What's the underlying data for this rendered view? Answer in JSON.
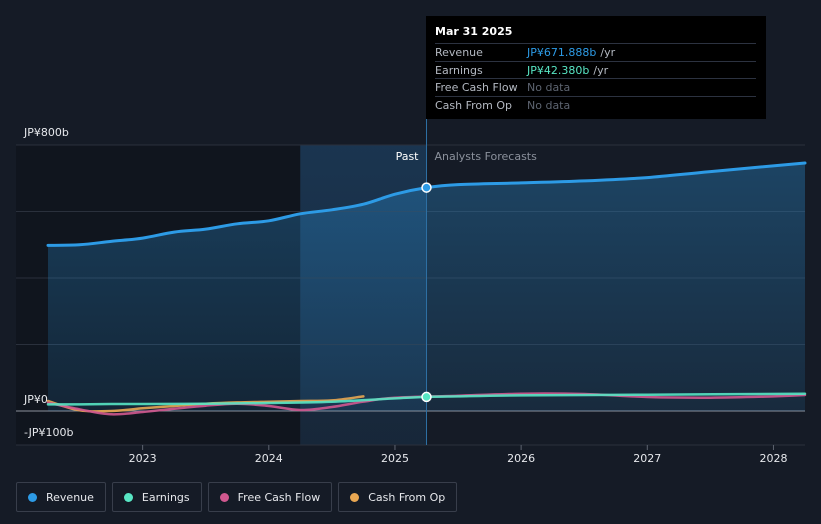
{
  "chart_data": {
    "type": "line",
    "y_labels": {
      "top": "JP¥800b",
      "zero": "JP¥0",
      "bottom": "-JP¥100b"
    },
    "ylim": [
      -100,
      800
    ],
    "xlim": [
      2022.25,
      2028.25
    ],
    "x_ticks": [
      "2023",
      "2024",
      "2025",
      "2026",
      "2027",
      "2028"
    ],
    "x_tick_values": [
      2023,
      2024,
      2025,
      2026,
      2027,
      2028
    ],
    "past_label": "Past",
    "forecast_label": "Analysts Forecasts",
    "past_start": 2024.25,
    "divider": 2025.25,
    "series": [
      {
        "name": "Revenue",
        "color": "#2d9be6",
        "points": [
          [
            2022.25,
            498
          ],
          [
            2022.5,
            500
          ],
          [
            2022.75,
            510
          ],
          [
            2023.0,
            520
          ],
          [
            2023.25,
            538
          ],
          [
            2023.5,
            547
          ],
          [
            2023.75,
            563
          ],
          [
            2024.0,
            572
          ],
          [
            2024.25,
            593
          ],
          [
            2024.5,
            605
          ],
          [
            2024.75,
            622
          ],
          [
            2025.0,
            652
          ],
          [
            2025.25,
            672
          ],
          [
            2025.5,
            681
          ],
          [
            2026.0,
            686
          ],
          [
            2026.5,
            692
          ],
          [
            2027.0,
            702
          ],
          [
            2027.5,
            720
          ],
          [
            2028.25,
            746
          ]
        ]
      },
      {
        "name": "Earnings",
        "color": "#58e6c4",
        "points": [
          [
            2022.25,
            20
          ],
          [
            2022.5,
            20
          ],
          [
            2022.75,
            21
          ],
          [
            2023.0,
            21
          ],
          [
            2023.5,
            22
          ],
          [
            2024.0,
            24
          ],
          [
            2024.5,
            28
          ],
          [
            2025.0,
            38
          ],
          [
            2025.25,
            42.4
          ],
          [
            2025.5,
            44
          ],
          [
            2026.0,
            47
          ],
          [
            2027.0,
            49
          ],
          [
            2028.25,
            52
          ]
        ]
      },
      {
        "name": "Free Cash Flow",
        "color": "#d0588f",
        "points": [
          [
            2022.25,
            25
          ],
          [
            2022.5,
            5
          ],
          [
            2022.75,
            -10
          ],
          [
            2023.0,
            -3
          ],
          [
            2023.25,
            7
          ],
          [
            2023.5,
            16
          ],
          [
            2023.75,
            22
          ],
          [
            2024.0,
            15
          ],
          [
            2024.25,
            3
          ],
          [
            2024.5,
            12
          ],
          [
            2024.75,
            28
          ],
          [
            2025.0,
            40
          ],
          [
            2025.5,
            46
          ],
          [
            2026.0,
            52
          ],
          [
            2026.5,
            51
          ],
          [
            2027.0,
            42
          ],
          [
            2027.5,
            40
          ],
          [
            2028.0,
            44
          ],
          [
            2028.25,
            48
          ]
        ]
      },
      {
        "name": "Cash From Op",
        "color": "#e8a752",
        "points": [
          [
            2022.25,
            30
          ],
          [
            2022.5,
            2
          ],
          [
            2022.75,
            0
          ],
          [
            2023.0,
            8
          ],
          [
            2023.25,
            15
          ],
          [
            2023.5,
            22
          ],
          [
            2023.75,
            26
          ],
          [
            2024.0,
            28
          ],
          [
            2024.25,
            30
          ],
          [
            2024.5,
            32
          ],
          [
            2024.75,
            44
          ]
        ]
      }
    ]
  },
  "tooltip": {
    "date": "Mar 31 2025",
    "rows": [
      {
        "label": "Revenue",
        "value": "JP¥671.888b",
        "unit": "/yr"
      },
      {
        "label": "Earnings",
        "value": "JP¥42.380b",
        "unit": "/yr"
      },
      {
        "label": "Free Cash Flow",
        "value": "No data",
        "unit": ""
      },
      {
        "label": "Cash From Op",
        "value": "No data",
        "unit": ""
      }
    ]
  },
  "legend": [
    {
      "label": "Revenue",
      "color": "#2d9be6"
    },
    {
      "label": "Earnings",
      "color": "#58e6c4"
    },
    {
      "label": "Free Cash Flow",
      "color": "#d0588f"
    },
    {
      "label": "Cash From Op",
      "color": "#e8a752"
    }
  ]
}
